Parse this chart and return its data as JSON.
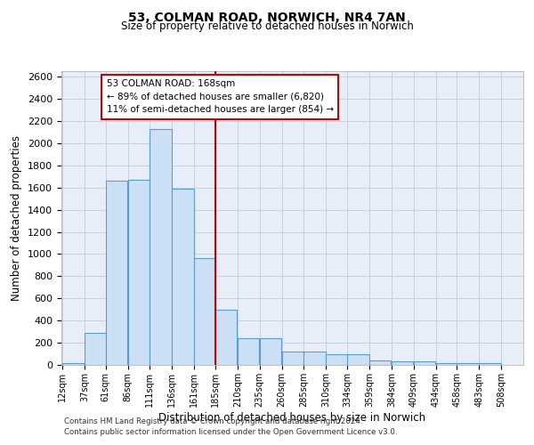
{
  "title": "53, COLMAN ROAD, NORWICH, NR4 7AN",
  "subtitle": "Size of property relative to detached houses in Norwich",
  "xlabel": "Distribution of detached houses by size in Norwich",
  "ylabel": "Number of detached properties",
  "bar_color": "#cce0f5",
  "bar_edge_color": "#5b9bd5",
  "line_color": "#cc0000",
  "background_color": "#e8eef8",
  "grid_color": "#c8d0e0",
  "annotation_box_edge": "#cc0000",
  "annotation_text": "53 COLMAN ROAD: 168sqm\n← 89% of detached houses are smaller (6,820)\n11% of semi-detached houses are larger (854) →",
  "property_size": 168,
  "footnote1": "Contains HM Land Registry data © Crown copyright and database right 2024.",
  "footnote2": "Contains public sector information licensed under the Open Government Licence v3.0.",
  "bins": [
    12,
    37,
    61,
    86,
    111,
    136,
    161,
    185,
    210,
    235,
    260,
    285,
    310,
    334,
    359,
    384,
    409,
    434,
    458,
    483,
    508
  ],
  "counts": [
    20,
    290,
    1660,
    1670,
    2130,
    1590,
    960,
    500,
    240,
    240,
    120,
    120,
    100,
    100,
    40,
    30,
    30,
    20,
    20,
    20
  ],
  "tick_labels": [
    "12sqm",
    "37sqm",
    "61sqm",
    "86sqm",
    "111sqm",
    "136sqm",
    "161sqm",
    "185sqm",
    "210sqm",
    "235sqm",
    "260sqm",
    "285sqm",
    "310sqm",
    "334sqm",
    "359sqm",
    "384sqm",
    "409sqm",
    "434sqm",
    "458sqm",
    "483sqm",
    "508sqm"
  ],
  "ylim": [
    0,
    2650
  ],
  "yticks": [
    0,
    200,
    400,
    600,
    800,
    1000,
    1200,
    1400,
    1600,
    1800,
    2000,
    2200,
    2400,
    2600
  ]
}
